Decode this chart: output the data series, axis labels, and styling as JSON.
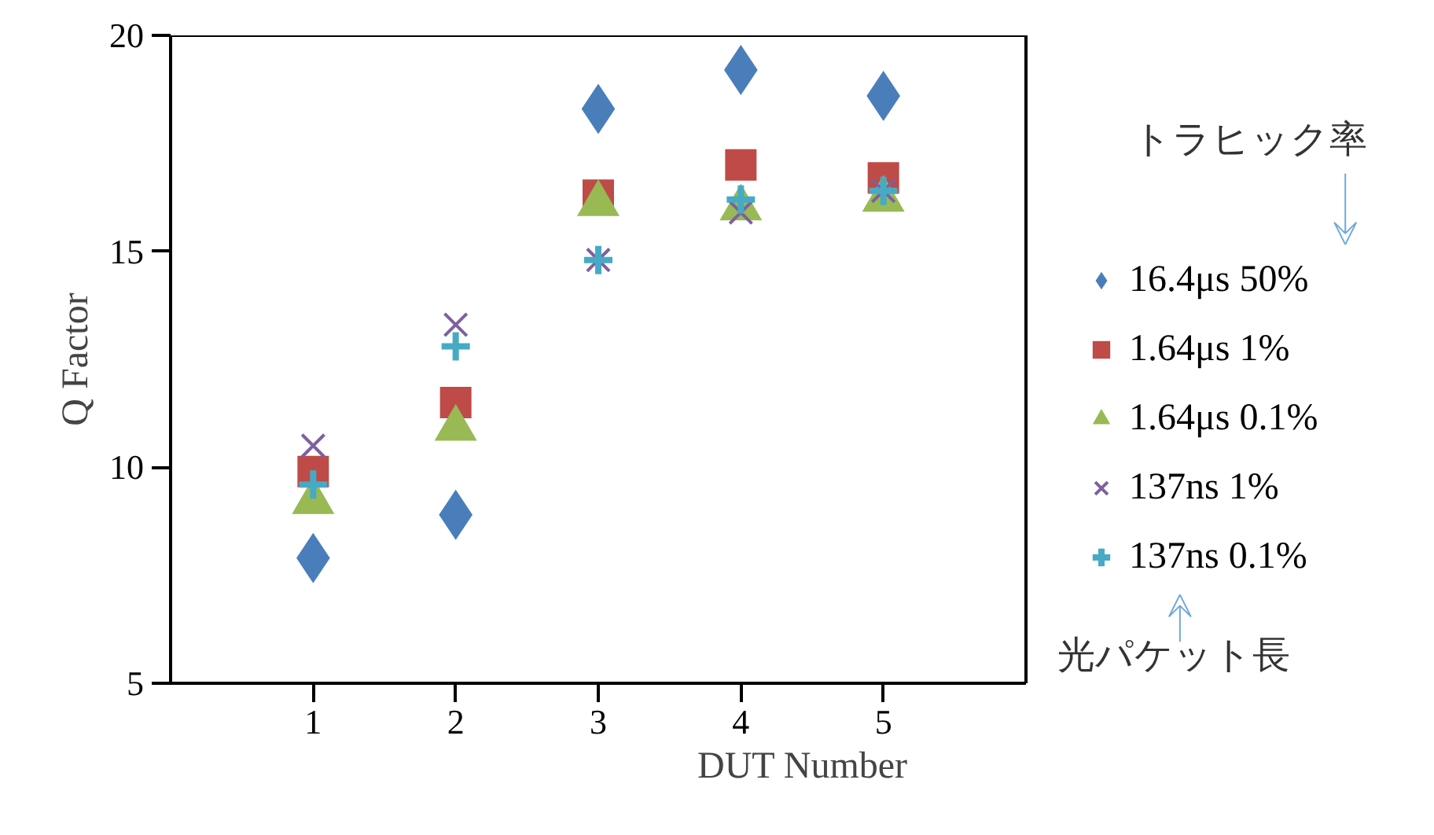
{
  "chart_data": {
    "type": "scatter",
    "xlabel": "DUT Number",
    "ylabel": "Q Factor",
    "x": [
      1,
      2,
      3,
      4,
      5
    ],
    "xlim": [
      0,
      6
    ],
    "xticks": [
      1,
      2,
      3,
      4,
      5
    ],
    "ylim": [
      5,
      20
    ],
    "yticks": [
      5,
      10,
      15,
      20
    ],
    "grid": false,
    "legend": "right",
    "series": [
      {
        "name": "16.4μs 50%",
        "color": "#4a7ebb",
        "marker": "diamond",
        "values": [
          7.9,
          8.9,
          18.3,
          19.2,
          18.6
        ]
      },
      {
        "name": "1.64μs 1%",
        "color": "#be4b48",
        "marker": "square",
        "values": [
          9.9,
          11.5,
          16.3,
          17.0,
          16.7
        ]
      },
      {
        "name": "1.64μs 0.1%",
        "color": "#98b954",
        "marker": "triangle",
        "values": [
          9.2,
          10.9,
          16.1,
          16.0,
          16.2
        ]
      },
      {
        "name": "137ns 1%",
        "color": "#7d60a0",
        "marker": "x",
        "values": [
          10.5,
          13.3,
          14.8,
          15.9,
          16.4
        ]
      },
      {
        "name": "137ns 0.1%",
        "color": "#46aac5",
        "marker": "cross",
        "values": [
          9.6,
          12.8,
          14.8,
          16.2,
          16.4
        ]
      }
    ],
    "annotations": [
      "トラヒック率",
      "光パケット長"
    ]
  }
}
